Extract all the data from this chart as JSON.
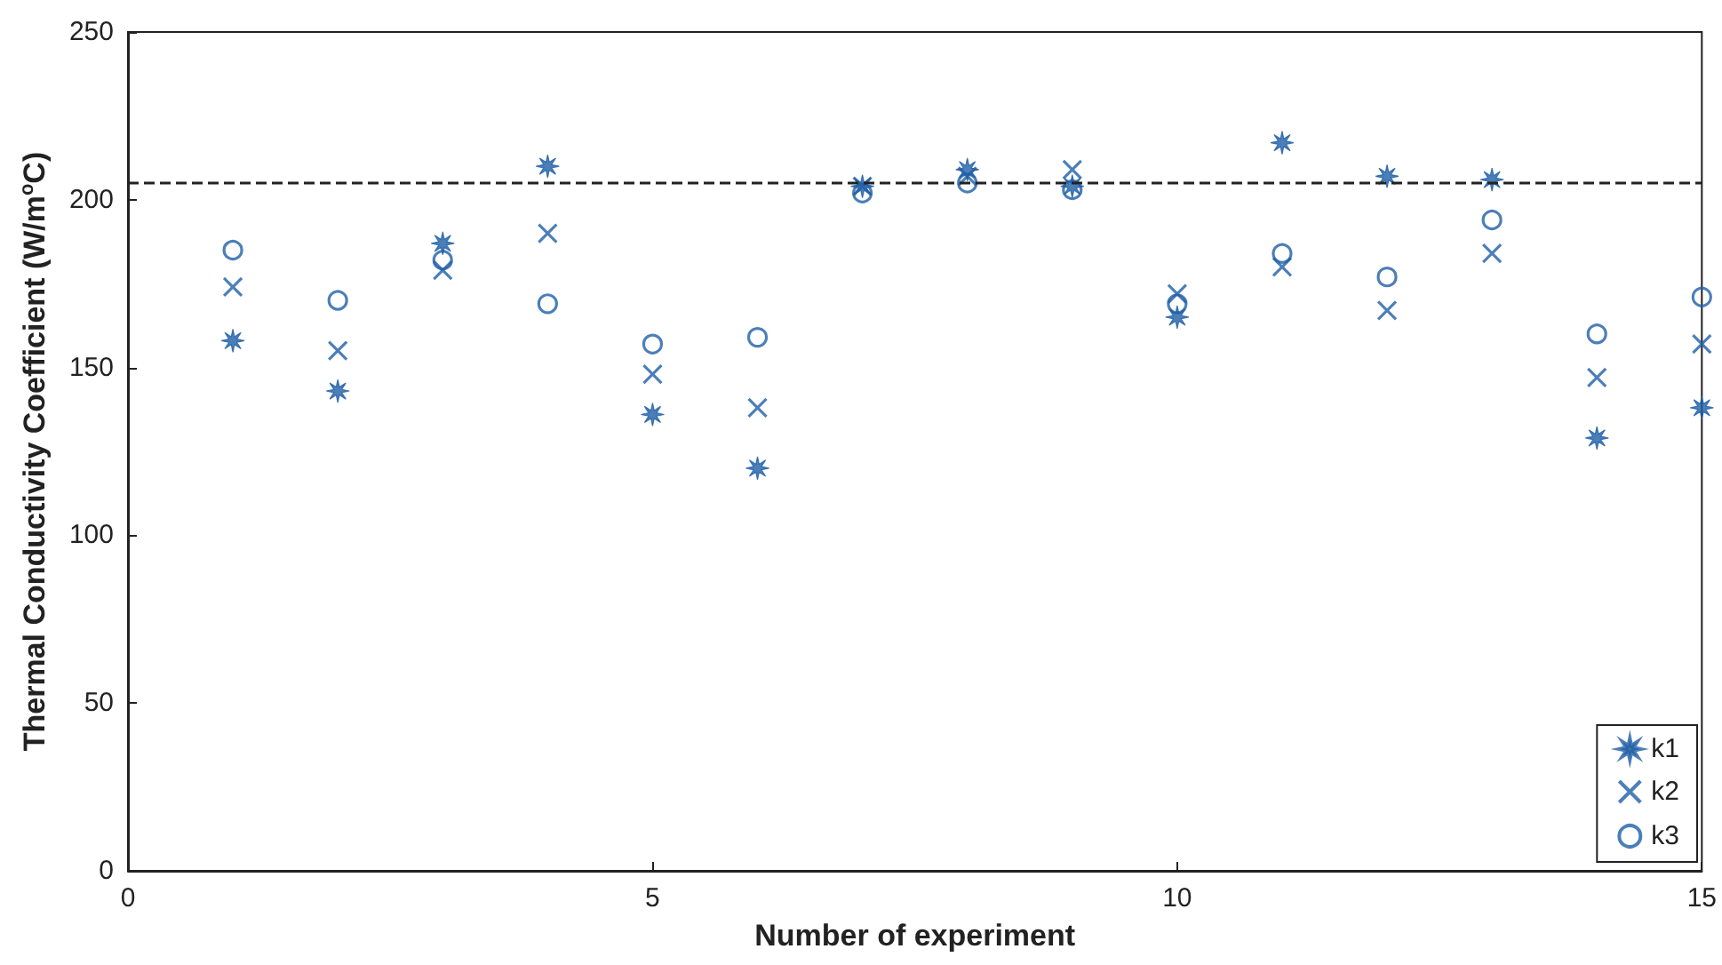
{
  "chart_data": {
    "type": "scatter",
    "xlabel": "Number of experiment",
    "ylabel": "Thermal Conductivity Coefficient (W/m$^{o}$C)",
    "x": [
      1,
      2,
      3,
      4,
      5,
      6,
      7,
      8,
      9,
      10,
      11,
      12,
      13,
      14,
      15
    ],
    "series": [
      {
        "name": "k1",
        "color": "#1f5fa6",
        "marker": "star",
        "values": [
          158,
          143,
          187,
          210,
          136,
          120,
          204,
          209,
          204,
          165,
          217,
          207,
          206,
          129,
          138
        ]
      },
      {
        "name": "k2",
        "color": "#1f5fa6",
        "marker": "cross",
        "values": [
          174,
          155,
          179,
          190,
          148,
          138,
          204,
          207,
          209,
          172,
          180,
          167,
          184,
          147,
          157
        ]
      },
      {
        "name": "k3",
        "color": "#1f5fa6",
        "marker": "circle",
        "values": [
          185,
          170,
          182,
          169,
          157,
          159,
          202,
          205,
          203,
          169,
          184,
          177,
          194,
          160,
          171
        ]
      }
    ],
    "xlim": [
      0,
      15
    ],
    "xticks": [
      0,
      5,
      10,
      15
    ],
    "ylim": [
      0,
      250
    ],
    "yticks": [
      0,
      50,
      100,
      150,
      200,
      250
    ],
    "ref_lines": [
      {
        "axis": "y",
        "value": 205,
        "color": "#222222",
        "line_style": "dashed"
      }
    ],
    "grid": false,
    "legend": "bottom right"
  }
}
